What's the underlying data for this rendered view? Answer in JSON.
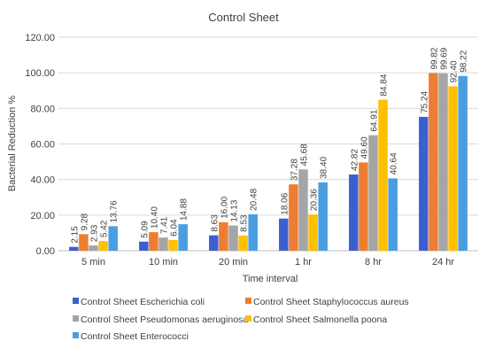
{
  "chart_data": {
    "type": "bar",
    "title": "Control Sheet",
    "xlabel": "Time interval",
    "ylabel": "Bacterial Reduction %",
    "ylim": [
      0,
      120
    ],
    "yticks": [
      "0.00",
      "20.00",
      "40.00",
      "60.00",
      "80.00",
      "100.00",
      "120.00"
    ],
    "grid": true,
    "legend_position": "bottom",
    "categories": [
      "5 min",
      "10 min",
      "20 min",
      "1 hr",
      "8 hr",
      "24 hr"
    ],
    "series": [
      {
        "name": "Control Sheet Escherichia coli",
        "color": "#3c5fcf",
        "values": [
          2.15,
          5.09,
          8.63,
          18.06,
          42.82,
          75.24
        ],
        "labels": [
          "2.15",
          "5.09",
          "8.63",
          "18.06",
          "42.82",
          "75.24"
        ]
      },
      {
        "name": "Control Sheet Staphylococcus aureus",
        "color": "#ed7d31",
        "values": [
          9.28,
          10.4,
          16.0,
          37.28,
          49.6,
          99.82
        ],
        "labels": [
          "9.28",
          "10.40",
          "16.00",
          "37.28",
          "49.60",
          "99.82"
        ]
      },
      {
        "name": "Control Sheet Pseudomonas aeruginosa",
        "color": "#a5a5a5",
        "values": [
          2.93,
          7.41,
          14.13,
          45.68,
          64.91,
          99.69
        ],
        "labels": [
          "2.93",
          "7.41",
          "14.13",
          "45.68",
          "64.91",
          "99.69"
        ]
      },
      {
        "name": "Control Sheet Salmonella poona",
        "color": "#ffc000",
        "values": [
          5.42,
          6.04,
          8.53,
          20.36,
          84.84,
          92.4
        ],
        "labels": [
          "5.42",
          "6.04",
          "8.53",
          "20.36",
          "84.84",
          "92.40"
        ]
      },
      {
        "name": "Control Sheet Enterococci",
        "color": "#4a9ee0",
        "values": [
          13.76,
          14.88,
          20.48,
          38.4,
          40.64,
          98.22
        ],
        "labels": [
          "13.76",
          "14.88",
          "20.48",
          "38.40",
          "40.64",
          "98.22"
        ]
      }
    ]
  }
}
